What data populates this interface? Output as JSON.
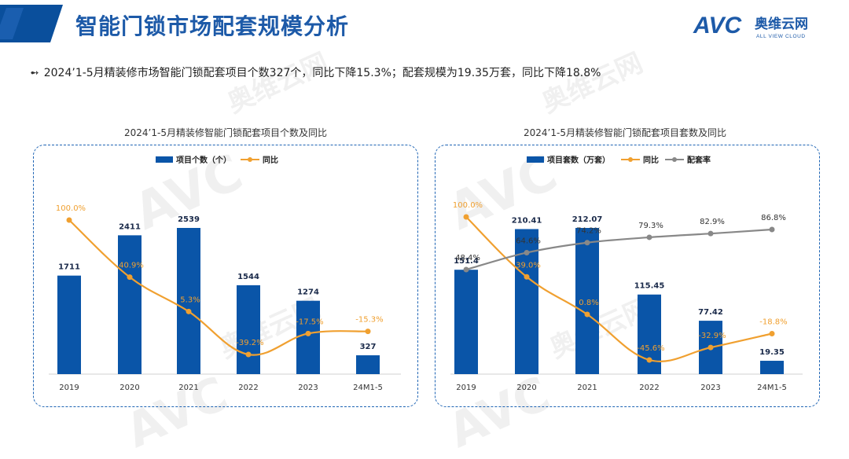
{
  "header": {
    "title": "智能门锁市场配套规模分析",
    "logo_text": "AVC",
    "logo_cn": "奥维云网",
    "logo_en": "ALL VIEW CLOUD"
  },
  "summary": {
    "text": "2024’1-5月精装修市场智能门锁配套项目个数327个，同比下降15.3%；配套规模为19.35万套，同比下降18.8%"
  },
  "watermark": {
    "brand": "AVC",
    "cn": "奥维云网",
    "en": "ALL VIEW CLOUD"
  },
  "colors": {
    "bar": "#0a55a8",
    "yoy": "#f0a030",
    "rate": "#888888",
    "title": "#1d5aa8",
    "border": "#1e64b4"
  },
  "chart_data": [
    {
      "type": "bar",
      "title": "2024’1-5月精装修智能门锁配套项目个数及同比",
      "categories": [
        "2019",
        "2020",
        "2021",
        "2022",
        "2023",
        "24M1-5"
      ],
      "series": [
        {
          "name": "项目个数（个）",
          "type": "bar",
          "values": [
            1711,
            2411,
            2539,
            1544,
            1274,
            327
          ],
          "labels": [
            "1711",
            "2411",
            "2539",
            "1544",
            "1274",
            "327"
          ]
        },
        {
          "name": "同比",
          "type": "line",
          "values": [
            100.0,
            40.9,
            5.3,
            -39.2,
            -17.5,
            -15.3
          ],
          "labels": [
            "100.0%",
            "40.9%",
            "5.3%",
            "-39.2%",
            "-17.5%",
            "-15.3%"
          ]
        }
      ]
    },
    {
      "type": "bar",
      "title": "2024’1-5月精装修智能门锁配套项目套数及同比",
      "categories": [
        "2019",
        "2020",
        "2021",
        "2022",
        "2023",
        "24M1-5"
      ],
      "series": [
        {
          "name": "项目套数（万套）",
          "type": "bar",
          "values": [
            151.4,
            210.41,
            212.07,
            115.45,
            77.42,
            19.35
          ],
          "labels": [
            "151.4",
            "210.41",
            "212.07",
            "115.45",
            "77.42",
            "19.35"
          ]
        },
        {
          "name": "同比",
          "type": "line",
          "values": [
            100.0,
            39.0,
            0.8,
            -45.6,
            -32.9,
            -18.8
          ],
          "labels": [
            "100.0%",
            "39.0%",
            "0.8%",
            "-45.6%",
            "-32.9%",
            "-18.8%"
          ]
        },
        {
          "name": "配套率",
          "type": "line",
          "values": [
            48.4,
            64.6,
            74.2,
            79.3,
            82.9,
            86.8
          ],
          "labels": [
            "48.4%",
            "64.6%",
            "74.2%",
            "79.3%",
            "82.9%",
            "86.8%"
          ]
        }
      ]
    }
  ]
}
